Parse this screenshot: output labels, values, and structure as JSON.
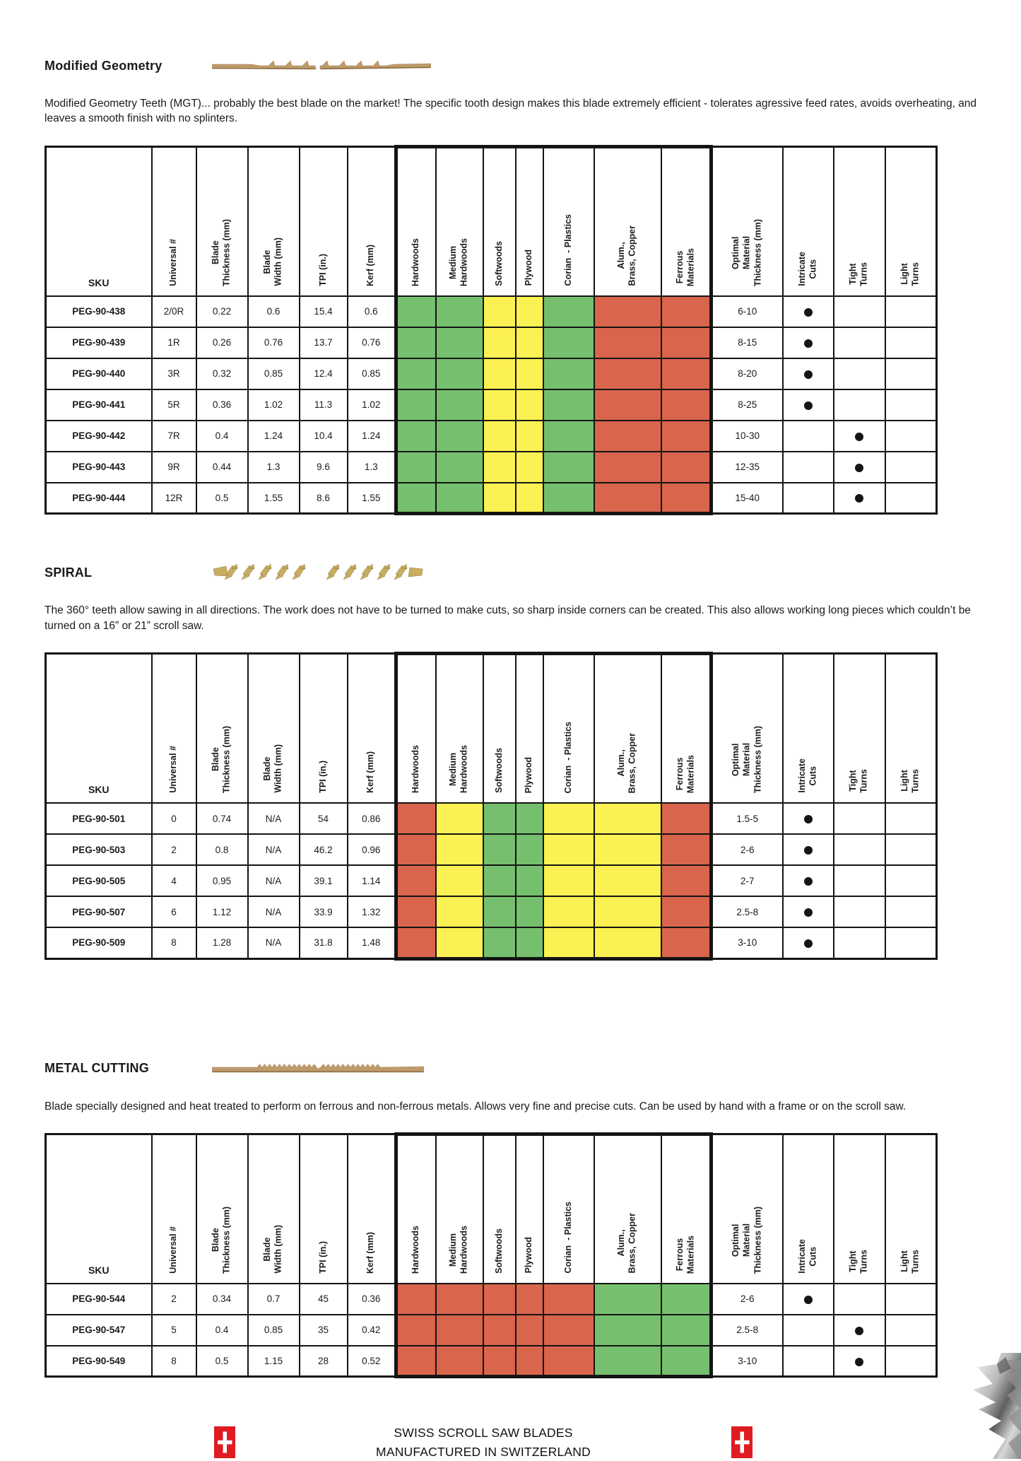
{
  "material_colors": {
    "good": "#76bf6e",
    "fair": "#fcf152",
    "poor": "#d9654d"
  },
  "columns": [
    {
      "key": "sku",
      "label": "SKU"
    },
    {
      "key": "universal",
      "label": "Universal #"
    },
    {
      "key": "thickness",
      "label": "Blade\nThickness (mm)"
    },
    {
      "key": "width",
      "label": "Blade\nWidth (mm)"
    },
    {
      "key": "tpi",
      "label": "TPI (in.)"
    },
    {
      "key": "kerf",
      "label": "Kerf (mm)"
    },
    {
      "key": "m0",
      "label": "Hardwoods",
      "material": true
    },
    {
      "key": "m1",
      "label": "Medium\nHardwoods",
      "material": true
    },
    {
      "key": "m2",
      "label": "Softwoods",
      "material": true
    },
    {
      "key": "m3",
      "label": "Plywood",
      "material": true
    },
    {
      "key": "m4",
      "label": "Corian  - Plastics",
      "material": true
    },
    {
      "key": "m5",
      "label": "Alum.,\nBrass, Copper",
      "material": true
    },
    {
      "key": "m6",
      "label": "Ferrous\nMaterials",
      "material": true
    },
    {
      "key": "optimal",
      "label": "Optimal\nMaterial\nThickness (mm)"
    },
    {
      "key": "intricate",
      "label": "Intricate\nCuts",
      "dot": true
    },
    {
      "key": "tight",
      "label": "Tight\nTurns",
      "dot": true
    },
    {
      "key": "light",
      "label": "Light\nTurns",
      "dot": true
    }
  ],
  "sections": [
    {
      "id": "modified-geometry",
      "title": "Modified Geometry",
      "blade": "mgt",
      "blade_icon": "mgt-blade-icon",
      "description": "Modified Geometry Teeth (MGT)... probably the best blade on the market! The specific tooth design makes this blade extremely efficient - tolerates agressive feed rates, avoids overheating, and leaves a smooth finish with no splinters.",
      "rows": [
        {
          "sku": "PEG-90-438",
          "universal": "2/0R",
          "thickness": "0.22",
          "width": "0.6",
          "tpi": "15.4",
          "kerf": "0.6",
          "materials": [
            "good",
            "good",
            "fair",
            "fair",
            "good",
            "poor",
            "poor"
          ],
          "optimal": "6-10",
          "intricate": true,
          "tight": false,
          "light": false
        },
        {
          "sku": "PEG-90-439",
          "universal": "1R",
          "thickness": "0.26",
          "width": "0.76",
          "tpi": "13.7",
          "kerf": "0.76",
          "materials": [
            "good",
            "good",
            "fair",
            "fair",
            "good",
            "poor",
            "poor"
          ],
          "optimal": "8-15",
          "intricate": true,
          "tight": false,
          "light": false
        },
        {
          "sku": "PEG-90-440",
          "universal": "3R",
          "thickness": "0.32",
          "width": "0.85",
          "tpi": "12.4",
          "kerf": "0.85",
          "materials": [
            "good",
            "good",
            "fair",
            "fair",
            "good",
            "poor",
            "poor"
          ],
          "optimal": "8-20",
          "intricate": true,
          "tight": false,
          "light": false
        },
        {
          "sku": "PEG-90-441",
          "universal": "5R",
          "thickness": "0.36",
          "width": "1.02",
          "tpi": "11.3",
          "kerf": "1.02",
          "materials": [
            "good",
            "good",
            "fair",
            "fair",
            "good",
            "poor",
            "poor"
          ],
          "optimal": "8-25",
          "intricate": true,
          "tight": false,
          "light": false
        },
        {
          "sku": "PEG-90-442",
          "universal": "7R",
          "thickness": "0.4",
          "width": "1.24",
          "tpi": "10.4",
          "kerf": "1.24",
          "materials": [
            "good",
            "good",
            "fair",
            "fair",
            "good",
            "poor",
            "poor"
          ],
          "optimal": "10-30",
          "intricate": false,
          "tight": true,
          "light": false
        },
        {
          "sku": "PEG-90-443",
          "universal": "9R",
          "thickness": "0.44",
          "width": "1.3",
          "tpi": "9.6",
          "kerf": "1.3",
          "materials": [
            "good",
            "good",
            "fair",
            "fair",
            "good",
            "poor",
            "poor"
          ],
          "optimal": "12-35",
          "intricate": false,
          "tight": true,
          "light": false
        },
        {
          "sku": "PEG-90-444",
          "universal": "12R",
          "thickness": "0.5",
          "width": "1.55",
          "tpi": "8.6",
          "kerf": "1.55",
          "materials": [
            "good",
            "good",
            "fair",
            "fair",
            "good",
            "poor",
            "poor"
          ],
          "optimal": "15-40",
          "intricate": false,
          "tight": true,
          "light": false
        }
      ]
    },
    {
      "id": "spiral",
      "title": "SPIRAL",
      "blade": "spiral",
      "blade_icon": "spiral-blade-icon",
      "description": "The 360° teeth allow sawing in all directions. The work does not have to be turned to make cuts, so sharp inside corners can be created. This also allows working long pieces which couldn’t be turned on a 16” or 21” scroll saw.",
      "rows": [
        {
          "sku": "PEG-90-501",
          "universal": "0",
          "thickness": "0.74",
          "width": "N/A",
          "tpi": "54",
          "kerf": "0.86",
          "materials": [
            "poor",
            "fair",
            "good",
            "good",
            "fair",
            "fair",
            "poor"
          ],
          "optimal": "1.5-5",
          "intricate": true,
          "tight": false,
          "light": false
        },
        {
          "sku": "PEG-90-503",
          "universal": "2",
          "thickness": "0.8",
          "width": "N/A",
          "tpi": "46.2",
          "kerf": "0.96",
          "materials": [
            "poor",
            "fair",
            "good",
            "good",
            "fair",
            "fair",
            "poor"
          ],
          "optimal": "2-6",
          "intricate": true,
          "tight": false,
          "light": false
        },
        {
          "sku": "PEG-90-505",
          "universal": "4",
          "thickness": "0.95",
          "width": "N/A",
          "tpi": "39.1",
          "kerf": "1.14",
          "materials": [
            "poor",
            "fair",
            "good",
            "good",
            "fair",
            "fair",
            "poor"
          ],
          "optimal": "2-7",
          "intricate": true,
          "tight": false,
          "light": false
        },
        {
          "sku": "PEG-90-507",
          "universal": "6",
          "thickness": "1.12",
          "width": "N/A",
          "tpi": "33.9",
          "kerf": "1.32",
          "materials": [
            "poor",
            "fair",
            "good",
            "good",
            "fair",
            "fair",
            "poor"
          ],
          "optimal": "2.5-8",
          "intricate": true,
          "tight": false,
          "light": false
        },
        {
          "sku": "PEG-90-509",
          "universal": "8",
          "thickness": "1.28",
          "width": "N/A",
          "tpi": "31.8",
          "kerf": "1.48",
          "materials": [
            "poor",
            "fair",
            "good",
            "good",
            "fair",
            "fair",
            "poor"
          ],
          "optimal": "3-10",
          "intricate": true,
          "tight": false,
          "light": false
        }
      ]
    },
    {
      "id": "metal-cutting",
      "title": "METAL CUTTING",
      "blade": "metal",
      "blade_icon": "metal-blade-icon",
      "description": "Blade specially designed and heat treated to perform on ferrous and non-ferrous metals. Allows very fine and precise cuts. Can be used by hand with a frame or on the scroll saw.",
      "rows": [
        {
          "sku": "PEG-90-544",
          "universal": "2",
          "thickness": "0.34",
          "width": "0.7",
          "tpi": "45",
          "kerf": "0.36",
          "materials": [
            "poor",
            "poor",
            "poor",
            "poor",
            "poor",
            "good",
            "good"
          ],
          "optimal": "2-6",
          "intricate": true,
          "tight": false,
          "light": false
        },
        {
          "sku": "PEG-90-547",
          "universal": "5",
          "thickness": "0.4",
          "width": "0.85",
          "tpi": "35",
          "kerf": "0.42",
          "materials": [
            "poor",
            "poor",
            "poor",
            "poor",
            "poor",
            "good",
            "good"
          ],
          "optimal": "2.5-8",
          "intricate": false,
          "tight": true,
          "light": false
        },
        {
          "sku": "PEG-90-549",
          "universal": "8",
          "thickness": "0.5",
          "width": "1.15",
          "tpi": "28",
          "kerf": "0.52",
          "materials": [
            "poor",
            "poor",
            "poor",
            "poor",
            "poor",
            "good",
            "good"
          ],
          "optimal": "3-10",
          "intricate": false,
          "tight": true,
          "light": false
        }
      ]
    }
  ],
  "footer": {
    "line1": "SWISS SCROLL SAW BLADES",
    "line2": "MANUFACTURED IN SWITZERLAND"
  },
  "brand_colors": {
    "flag_red": "#e01b22",
    "blade_tan": "#bf9a6a",
    "spiral_gold": "#c9ad60"
  }
}
